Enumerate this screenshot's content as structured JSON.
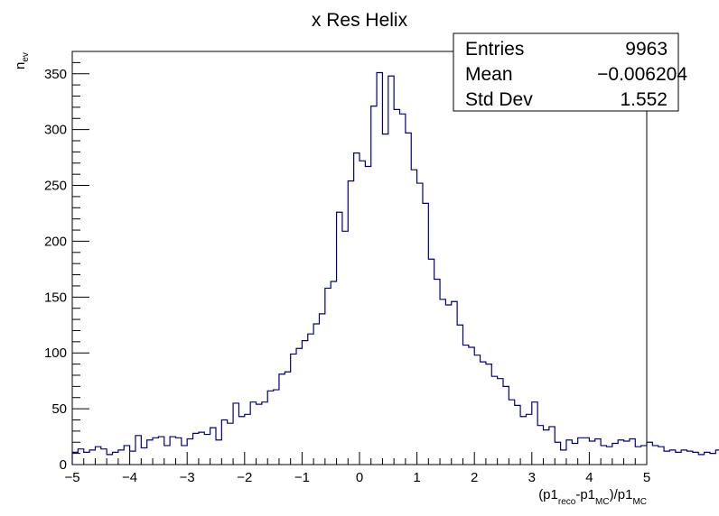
{
  "chart_data": {
    "type": "histogram",
    "title": "x Res Helix",
    "ylabel": "n_ev",
    "xlabel": {
      "parts": [
        "(p1",
        "reco",
        "-p1",
        "MC",
        ")/p1",
        "MC"
      ]
    },
    "xlim": [
      -5,
      5
    ],
    "ylim": [
      0,
      370
    ],
    "xticks": [
      -5,
      -4,
      -3,
      -2,
      -1,
      0,
      1,
      2,
      3,
      4,
      5
    ],
    "xtick_labels": [
      "−5",
      "−4",
      "−3",
      "−2",
      "−1",
      "0",
      "1",
      "2",
      "3",
      "4",
      "5"
    ],
    "yticks": [
      0,
      50,
      100,
      150,
      200,
      250,
      300,
      350
    ],
    "ytick_labels": [
      "0",
      "50",
      "100",
      "150",
      "200",
      "250",
      "300",
      "350"
    ],
    "bin_width": 0.1,
    "line_color": "#000080",
    "values": [
      11,
      14,
      11,
      13,
      16,
      14,
      9,
      11,
      13,
      17,
      12,
      26,
      15,
      22,
      24,
      25,
      17,
      25,
      24,
      17,
      23,
      28,
      29,
      27,
      33,
      22,
      40,
      37,
      55,
      43,
      45,
      56,
      54,
      56,
      66,
      67,
      81,
      83,
      99,
      104,
      111,
      117,
      126,
      135,
      158,
      164,
      226,
      209,
      254,
      279,
      272,
      267,
      321,
      351,
      296,
      348,
      318,
      314,
      297,
      264,
      252,
      234,
      184,
      166,
      148,
      143,
      146,
      125,
      107,
      105,
      98,
      92,
      90,
      79,
      77,
      70,
      58,
      53,
      43,
      45,
      56,
      35,
      31,
      34,
      20,
      13,
      22,
      19,
      24,
      24,
      21,
      23,
      17,
      16,
      19,
      22,
      21,
      23,
      16,
      17,
      20,
      17,
      16,
      12,
      13,
      11,
      13,
      12,
      11,
      9,
      11,
      10,
      13,
      12,
      15,
      14,
      12,
      11,
      10,
      12
    ],
    "stats": {
      "rows": [
        {
          "label": "Entries",
          "value": "9963"
        },
        {
          "label": "Mean",
          "value": "−0.006204"
        },
        {
          "label": "Std Dev",
          "value": "1.552"
        }
      ]
    }
  }
}
